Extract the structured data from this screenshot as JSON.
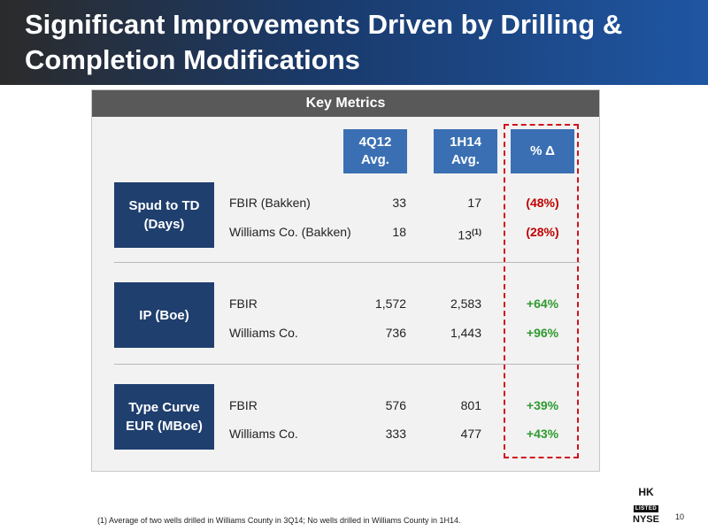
{
  "slide": {
    "title_line1": "Significant Improvements Driven by Drilling &",
    "title_line2": "Completion Modifications",
    "panel_title": "Key Metrics",
    "page_number": "10"
  },
  "columns": {
    "col1_line1": "4Q12",
    "col1_line2": "Avg.",
    "col2_line1": "1H14",
    "col2_line2": "Avg.",
    "col3": "% Δ"
  },
  "sections": [
    {
      "category_line1": "Spud to TD",
      "category_line2": "(Days)",
      "rows": [
        {
          "label": "FBIR (Bakken)",
          "v1": "33",
          "v2": "17",
          "pct": "(48%)"
        },
        {
          "label": "Williams Co. (Bakken)",
          "v1": "18",
          "v2": "13",
          "v2_note": "(1)",
          "pct": "(28%)"
        }
      ]
    },
    {
      "category_line1": "IP (Boe)",
      "category_line2": "",
      "rows": [
        {
          "label": "FBIR",
          "v1": "1,572",
          "v2": "2,583",
          "pct": "+64%"
        },
        {
          "label": "Williams Co.",
          "v1": "736",
          "v2": "1,443",
          "pct": "+96%"
        }
      ]
    },
    {
      "category_line1": "Type Curve",
      "category_line2": "EUR (MBoe)",
      "rows": [
        {
          "label": "FBIR",
          "v1": "576",
          "v2": "801",
          "pct": "+39%"
        },
        {
          "label": "Williams Co.",
          "v1": "333",
          "v2": "477",
          "pct": "+43%"
        }
      ]
    }
  ],
  "footnote": "(1)   Average of two wells drilled in Williams County in 3Q14; No wells drilled in Williams County in 1H14.",
  "logo": {
    "line1": "HK",
    "line2": "LISTED",
    "line3": "NYSE"
  },
  "colors": {
    "title_gradient_start": "#2b2b2b",
    "title_gradient_end": "#1f56a3",
    "header_gray": "#595959",
    "column_blue": "#3a70b3",
    "category_navy": "#1f3f6e",
    "negative_red": "#c00000",
    "positive_green": "#2e9a2e",
    "highlight_dash_red": "#d0121b"
  }
}
